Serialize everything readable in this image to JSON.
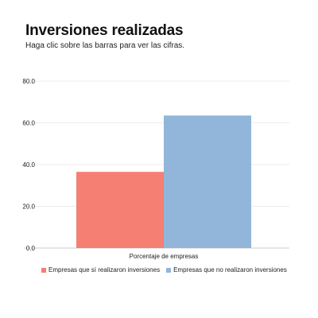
{
  "header": {
    "title": "Inversiones realizadas",
    "subtitle": "Haga clic sobre las barras para ver las cifras."
  },
  "chart_data": {
    "type": "bar",
    "categories": [
      "Porcentaje de empresas"
    ],
    "series": [
      {
        "name": "Empresas que sí realizaron inversiones",
        "values": [
          36.5
        ],
        "color": "#f47f72"
      },
      {
        "name": "Empresas que no realizaron inversiones",
        "values": [
          63.5
        ],
        "color": "#92b6d9"
      }
    ],
    "ylim": [
      0,
      80
    ],
    "yticks": [
      0,
      20,
      40,
      60,
      80
    ],
    "ytick_labels": [
      "0.0",
      "20.0",
      "40.0",
      "60.0",
      "80.0"
    ],
    "xlabel": "",
    "ylabel": "",
    "grid": true,
    "legend": "bottom"
  }
}
